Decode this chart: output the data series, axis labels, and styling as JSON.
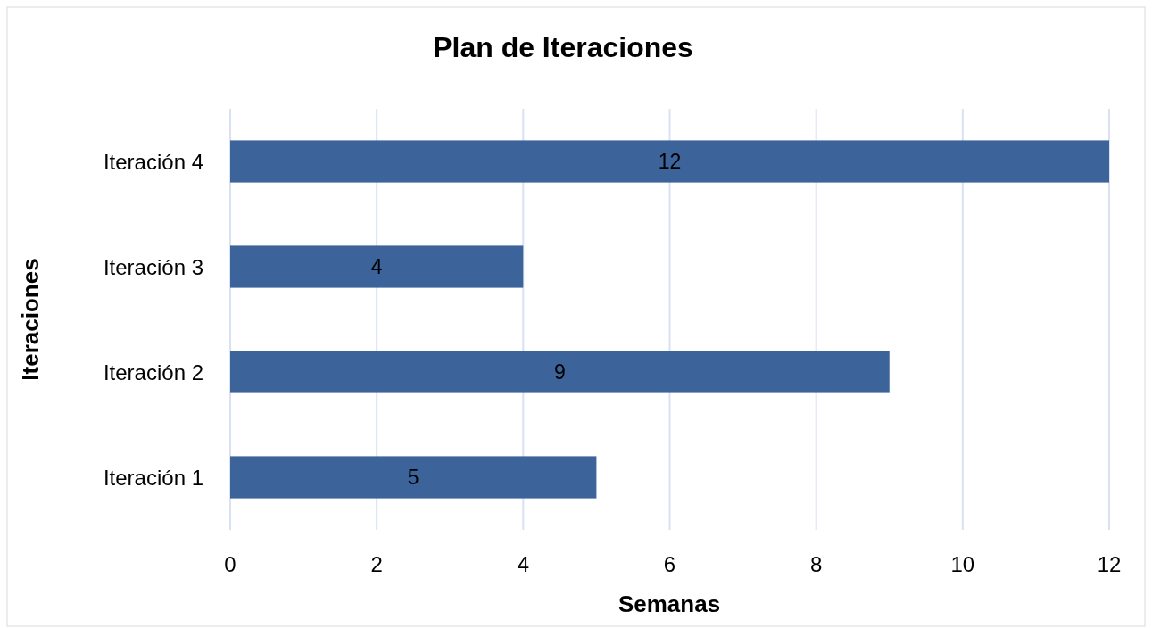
{
  "chart_data": {
    "type": "bar",
    "orientation": "horizontal",
    "title": "Plan de Iteraciones",
    "xlabel": "Semanas",
    "ylabel": "Iteraciones",
    "categories": [
      "Iteración 4",
      "Iteración 3",
      "Iteración 2",
      "Iteración 1"
    ],
    "values": [
      12,
      4,
      9,
      5
    ],
    "color": "#3c649b",
    "xlim": [
      0,
      12
    ],
    "xticks": [
      0,
      2,
      4,
      6,
      8,
      10,
      12
    ],
    "grid": "x",
    "data_labels": true
  }
}
